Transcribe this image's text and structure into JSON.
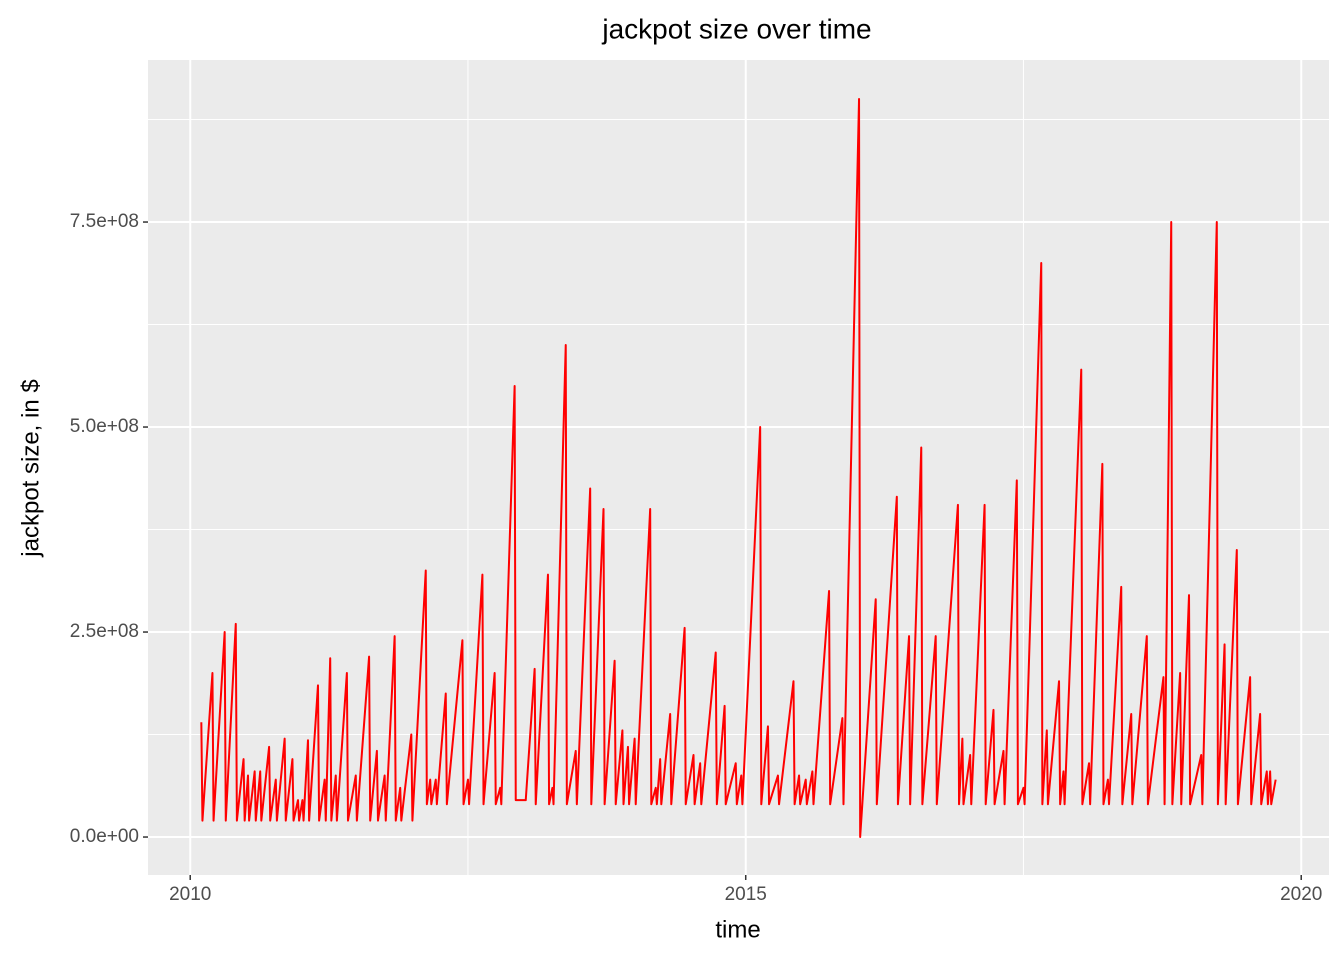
{
  "chart_data": {
    "type": "line",
    "title": "jackpot size over time",
    "x_label": "time",
    "y_label": "jackpot size, in $",
    "color": "#ff0000",
    "grid": true,
    "xlim": [
      2009.62,
      2020.25
    ],
    "xticks": [
      2010,
      2015,
      2020
    ],
    "x_minor_ticks": [
      2012.5,
      2017.5
    ],
    "ylim": [
      -46300000,
      947600000
    ],
    "yticks": [
      {
        "value": 0,
        "label": "0.0e+00"
      },
      {
        "value": 250000000,
        "label": "2.5e+08"
      },
      {
        "value": 500000000,
        "label": "5.0e+08"
      },
      {
        "value": 750000000,
        "label": "7.5e+08"
      }
    ],
    "y_minor_ticks": [
      125000000,
      375000000,
      625000000,
      875000000
    ],
    "x": [
      2010.1,
      2010.11,
      2010.2,
      2010.21,
      2010.31,
      2010.32,
      2010.41,
      2010.42,
      2010.48,
      2010.49,
      2010.52,
      2010.53,
      2010.58,
      2010.59,
      2010.63,
      2010.64,
      2010.71,
      2010.72,
      2010.77,
      2010.78,
      2010.85,
      2010.86,
      2010.92,
      2010.93,
      2010.97,
      2010.98,
      2011.01,
      2011.02,
      2011.06,
      2011.07,
      2011.15,
      2011.16,
      2011.21,
      2011.22,
      2011.26,
      2011.27,
      2011.31,
      2011.32,
      2011.41,
      2011.42,
      2011.49,
      2011.5,
      2011.61,
      2011.62,
      2011.68,
      2011.69,
      2011.75,
      2011.76,
      2011.84,
      2011.85,
      2011.89,
      2011.9,
      2011.99,
      2012.0,
      2012.12,
      2012.13,
      2012.16,
      2012.17,
      2012.21,
      2012.22,
      2012.3,
      2012.31,
      2012.45,
      2012.46,
      2012.5,
      2012.51,
      2012.63,
      2012.64,
      2012.74,
      2012.75,
      2012.79,
      2012.8,
      2012.92,
      2012.93,
      2013.02,
      2013.1,
      2013.11,
      2013.22,
      2013.23,
      2013.26,
      2013.27,
      2013.38,
      2013.39,
      2013.47,
      2013.48,
      2013.6,
      2013.61,
      2013.72,
      2013.73,
      2013.82,
      2013.83,
      2013.89,
      2013.9,
      2013.94,
      2013.95,
      2014.0,
      2014.01,
      2014.14,
      2014.15,
      2014.19,
      2014.2,
      2014.23,
      2014.24,
      2014.32,
      2014.33,
      2014.45,
      2014.46,
      2014.53,
      2014.54,
      2014.59,
      2014.6,
      2014.73,
      2014.74,
      2014.81,
      2014.82,
      2014.91,
      2014.92,
      2014.96,
      2014.97,
      2015.13,
      2015.14,
      2015.2,
      2015.21,
      2015.29,
      2015.3,
      2015.43,
      2015.44,
      2015.48,
      2015.49,
      2015.54,
      2015.55,
      2015.6,
      2015.61,
      2015.75,
      2015.76,
      2015.87,
      2015.88,
      2016.02,
      2016.03,
      2016.17,
      2016.18,
      2016.36,
      2016.37,
      2016.47,
      2016.48,
      2016.58,
      2016.59,
      2016.71,
      2016.72,
      2016.91,
      2016.92,
      2016.95,
      2016.96,
      2017.02,
      2017.03,
      2017.15,
      2017.16,
      2017.23,
      2017.24,
      2017.32,
      2017.33,
      2017.44,
      2017.45,
      2017.5,
      2017.51,
      2017.66,
      2017.67,
      2017.71,
      2017.72,
      2017.82,
      2017.83,
      2017.86,
      2017.87,
      2018.02,
      2018.03,
      2018.09,
      2018.1,
      2018.21,
      2018.22,
      2018.26,
      2018.27,
      2018.38,
      2018.39,
      2018.47,
      2018.48,
      2018.61,
      2018.62,
      2018.76,
      2018.77,
      2018.83,
      2018.84,
      2018.91,
      2018.92,
      2018.99,
      2019.0,
      2019.1,
      2019.11,
      2019.24,
      2019.25,
      2019.31,
      2019.32,
      2019.42,
      2019.43,
      2019.54,
      2019.55,
      2019.63,
      2019.64,
      2019.69,
      2019.7,
      2019.72,
      2019.73,
      2019.77
    ],
    "values": [
      140000000.0,
      20000000.0,
      200000000.0,
      20000000.0,
      250000000.0,
      20000000.0,
      260000000.0,
      20000000.0,
      95000000.0,
      20000000.0,
      75000000.0,
      20000000.0,
      80000000.0,
      20000000.0,
      80000000.0,
      20000000.0,
      110000000.0,
      20000000.0,
      70000000.0,
      20000000.0,
      120000000.0,
      20000000.0,
      95000000.0,
      20000000.0,
      45000000.0,
      20000000.0,
      45000000.0,
      20000000.0,
      118000000.0,
      20000000.0,
      185000000.0,
      20000000.0,
      70000000.0,
      20000000.0,
      218000000.0,
      20000000.0,
      75000000.0,
      20000000.0,
      200000000.0,
      20000000.0,
      75000000.0,
      20000000.0,
      220000000.0,
      20000000.0,
      105000000.0,
      20000000.0,
      75000000.0,
      20000000.0,
      245000000.0,
      20000000.0,
      60000000.0,
      20000000.0,
      125000000.0,
      20000000.0,
      325000000.0,
      40000000.0,
      70000000.0,
      40000000.0,
      70000000.0,
      40000000.0,
      175000000.0,
      40000000.0,
      240000000.0,
      40000000.0,
      70000000.0,
      40000000.0,
      320000000.0,
      40000000.0,
      200000000.0,
      40000000.0,
      60000000.0,
      40000000.0,
      550000000.0,
      45000000.0,
      45000000.0,
      205000000.0,
      40000000.0,
      320000000.0,
      40000000.0,
      60000000.0,
      40000000.0,
      600000000.0,
      40000000.0,
      105000000.0,
      40000000.0,
      425000000.0,
      40000000.0,
      400000000.0,
      40000000.0,
      215000000.0,
      40000000.0,
      130000000.0,
      40000000.0,
      110000000.0,
      40000000.0,
      120000000.0,
      40000000.0,
      400000000.0,
      40000000.0,
      60000000.0,
      40000000.0,
      95000000.0,
      40000000.0,
      150000000.0,
      40000000.0,
      255000000.0,
      40000000.0,
      100000000.0,
      40000000.0,
      90000000.0,
      40000000.0,
      225000000.0,
      40000000.0,
      160000000.0,
      40000000.0,
      90000000.0,
      40000000.0,
      75000000.0,
      40000000.0,
      500000000.0,
      40000000.0,
      135000000.0,
      40000000.0,
      75000000.0,
      40000000.0,
      190000000.0,
      40000000.0,
      75000000.0,
      40000000.0,
      70000000.0,
      40000000.0,
      80000000.0,
      40000000.0,
      300000000.0,
      40000000.0,
      145000000.0,
      40000000.0,
      900000000.0,
      0,
      290000000.0,
      40000000.0,
      415000000.0,
      40000000.0,
      245000000.0,
      40000000.0,
      475000000.0,
      40000000.0,
      245000000.0,
      40000000.0,
      405000000.0,
      40000000.0,
      120000000.0,
      40000000.0,
      100000000.0,
      40000000.0,
      405000000.0,
      40000000.0,
      155000000.0,
      40000000.0,
      105000000.0,
      40000000.0,
      435000000.0,
      40000000.0,
      60000000.0,
      40000000.0,
      700000000.0,
      40000000.0,
      130000000.0,
      40000000.0,
      190000000.0,
      40000000.0,
      80000000.0,
      40000000.0,
      570000000.0,
      40000000.0,
      90000000.0,
      40000000.0,
      455000000.0,
      40000000.0,
      70000000.0,
      40000000.0,
      305000000.0,
      40000000.0,
      150000000.0,
      40000000.0,
      245000000.0,
      40000000.0,
      195000000.0,
      40000000.0,
      750000000.0,
      40000000.0,
      200000000.0,
      40000000.0,
      295000000.0,
      40000000.0,
      100000000.0,
      40000000.0,
      750000000.0,
      40000000.0,
      235000000.0,
      40000000.0,
      350000000.0,
      40000000.0,
      195000000.0,
      40000000.0,
      150000000.0,
      40000000.0,
      80000000.0,
      40000000.0,
      80000000.0,
      40000000.0,
      70000000.0
    ]
  }
}
